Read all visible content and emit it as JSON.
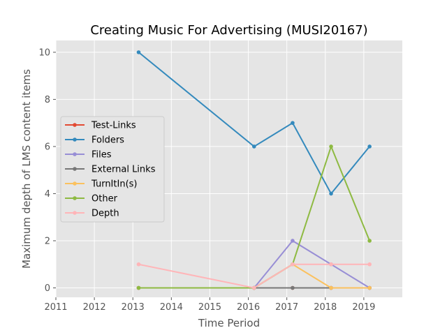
{
  "chart_data": {
    "type": "line",
    "title": "Creating Music For Advertising (MUSI20167)",
    "xlabel": "Time Period",
    "ylabel": "Maximum depth of LMS content items",
    "xlim": [
      2011,
      2020
    ],
    "ylim": [
      -0.4,
      10.5
    ],
    "xticks": [
      2011,
      2012,
      2013,
      2014,
      2015,
      2016,
      2017,
      2018,
      2019
    ],
    "yticks": [
      0,
      2,
      4,
      6,
      8,
      10
    ],
    "grid": true,
    "legend_position": "center-left",
    "series": [
      {
        "name": "Test-Links",
        "color": "#e24a33",
        "x": [
          2013.15,
          2016.15,
          2017.15,
          2018.15,
          2019.15
        ],
        "y": [
          0,
          0,
          0,
          0,
          0
        ]
      },
      {
        "name": "Folders",
        "color": "#348abd",
        "x": [
          2013.15,
          2016.15,
          2017.15,
          2018.15,
          2019.15
        ],
        "y": [
          10,
          6,
          7,
          4,
          6
        ]
      },
      {
        "name": "Files",
        "color": "#988ed5",
        "x": [
          2013.15,
          2016.15,
          2017.15,
          2018.15,
          2019.15
        ],
        "y": [
          0,
          0,
          2,
          1,
          0
        ]
      },
      {
        "name": "External Links",
        "color": "#777777",
        "x": [
          2013.15,
          2016.15,
          2017.15,
          2018.15,
          2019.15
        ],
        "y": [
          0,
          0,
          0,
          0,
          0
        ]
      },
      {
        "name": "TurnItIn(s)",
        "color": "#fbc15e",
        "x": [
          2013.15,
          2016.15,
          2017.15,
          2018.15,
          2019.15
        ],
        "y": [
          0,
          0,
          1,
          0,
          0
        ]
      },
      {
        "name": "Other",
        "color": "#8eba42",
        "x": [
          2013.15,
          2016.15,
          2017.15,
          2018.15,
          2019.15
        ],
        "y": [
          0,
          0,
          1,
          6,
          2
        ]
      },
      {
        "name": "Depth",
        "color": "#ffb5b8",
        "x": [
          2013.15,
          2016.15,
          2017.15,
          2018.15,
          2019.15
        ],
        "y": [
          1,
          0,
          1,
          1,
          1
        ]
      }
    ]
  }
}
